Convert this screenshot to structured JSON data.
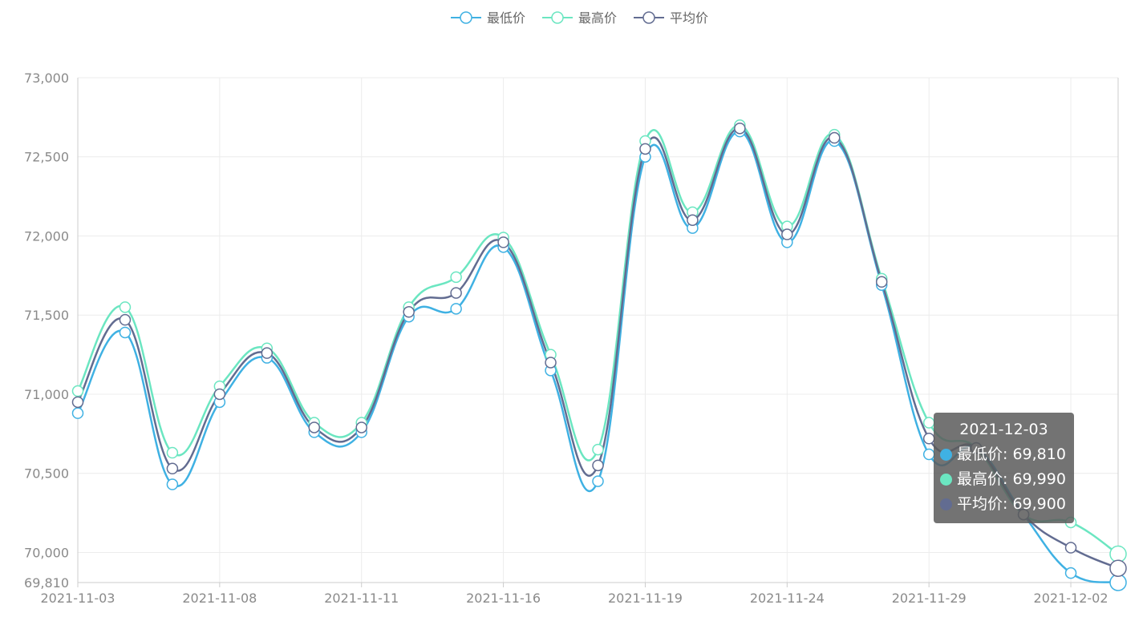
{
  "chart_data": {
    "type": "line",
    "x": [
      "2021-11-03",
      "2021-11-04",
      "2021-11-05",
      "2021-11-08",
      "2021-11-09",
      "2021-11-10",
      "2021-11-11",
      "2021-11-12",
      "2021-11-15",
      "2021-11-16",
      "2021-11-17",
      "2021-11-18",
      "2021-11-19",
      "2021-11-22",
      "2021-11-23",
      "2021-11-24",
      "2021-11-25",
      "2021-11-26",
      "2021-11-29",
      "2021-11-30",
      "2021-12-01",
      "2021-12-02",
      "2021-12-03"
    ],
    "x_tick_labels": [
      "2021-11-03",
      "2021-11-08",
      "2021-11-11",
      "2021-11-16",
      "2021-11-19",
      "2021-11-24",
      "2021-11-29",
      "2021-12-02"
    ],
    "y_tick_labels": [
      "73,000",
      "72,500",
      "72,000",
      "71,500",
      "71,000",
      "70,500",
      "70,000",
      "69,810"
    ],
    "ylim": [
      69810,
      73000
    ],
    "y_ticks": [
      73000,
      72500,
      72000,
      71500,
      71000,
      70500,
      70000,
      69810
    ],
    "grid": true,
    "legend_position": "top-center",
    "series": [
      {
        "name": "最低价",
        "color": "#3fb1e3",
        "values": [
          70880,
          71390,
          70430,
          70950,
          71230,
          70760,
          70760,
          71490,
          71540,
          71930,
          71150,
          70450,
          72500,
          72050,
          72660,
          71960,
          72600,
          71690,
          70620,
          70660,
          70240,
          69870,
          69810
        ]
      },
      {
        "name": "最高价",
        "color": "#6be6c1",
        "values": [
          71020,
          71550,
          70630,
          71050,
          71290,
          70820,
          70820,
          71550,
          71740,
          71990,
          71250,
          70650,
          72600,
          72150,
          72700,
          72060,
          72640,
          71730,
          70820,
          70660,
          70240,
          70190,
          69990
        ]
      },
      {
        "name": "平均价",
        "color": "#626c91",
        "values": [
          70950,
          71470,
          70530,
          71000,
          71260,
          70790,
          70790,
          71520,
          71640,
          71960,
          71200,
          70550,
          72550,
          72100,
          72680,
          72010,
          72620,
          71710,
          70720,
          70660,
          70240,
          70030,
          69900
        ]
      }
    ]
  },
  "tooltip": {
    "title": "2021-12-03",
    "rows": [
      {
        "label": "最低价: 69,810",
        "color": "#3fb1e3"
      },
      {
        "label": "最高价: 69,990",
        "color": "#6be6c1"
      },
      {
        "label": "平均价: 69,900",
        "color": "#626c91"
      }
    ]
  }
}
